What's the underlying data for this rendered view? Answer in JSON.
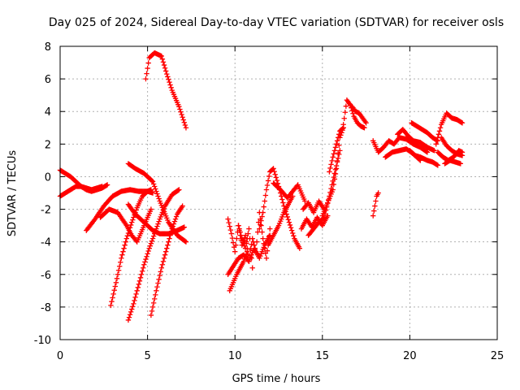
{
  "chart_data": {
    "type": "scatter",
    "title": "Day 025 of 2024, Sidereal Day-to-day VTEC variation (SDTVAR) for receiver osls",
    "xlabel": "GPS time / hours",
    "ylabel": "SDTVAR / TECUs",
    "xlim": [
      0,
      25
    ],
    "ylim": [
      -10,
      8
    ],
    "xticks": [
      0,
      5,
      10,
      15,
      20,
      25
    ],
    "yticks": [
      -10,
      -8,
      -6,
      -4,
      -2,
      0,
      2,
      4,
      6,
      8
    ],
    "xtick_labels": [
      "0",
      "5",
      "10",
      "15",
      "20",
      "25"
    ],
    "ytick_labels": [
      "-10",
      "-8",
      "-6",
      "-4",
      "-2",
      "0",
      "2",
      "4",
      "6",
      "8"
    ],
    "grid": true,
    "marker": "+",
    "marker_color": "#ff0000",
    "series": [
      {
        "x": [
          0.0,
          0.3,
          0.6,
          0.9,
          1.2,
          1.5,
          1.8,
          2.1,
          2.4,
          2.7
        ],
        "y": [
          0.4,
          0.2,
          0.0,
          -0.3,
          -0.6,
          -0.8,
          -0.9,
          -0.8,
          -0.7,
          -0.5
        ]
      },
      {
        "x": [
          0.0,
          0.3,
          0.6,
          0.9,
          1.2,
          1.5,
          1.8,
          2.1,
          2.4
        ],
        "y": [
          -1.2,
          -1.0,
          -0.8,
          -0.6,
          -0.6,
          -0.7,
          -0.8,
          -0.7,
          -0.6
        ]
      },
      {
        "x": [
          1.5,
          2.0,
          2.5,
          3.0,
          3.5,
          4.0,
          4.5,
          5.0,
          5.3
        ],
        "y": [
          -3.3,
          -2.6,
          -1.8,
          -1.2,
          -0.9,
          -0.8,
          -0.9,
          -0.9,
          -1.0
        ]
      },
      {
        "x": [
          2.3,
          2.8,
          3.3,
          3.8,
          4.1,
          4.4,
          4.8,
          5.2
        ],
        "y": [
          -2.5,
          -2.0,
          -2.2,
          -3.0,
          -3.6,
          -4.0,
          -3.0,
          -2.0
        ]
      },
      {
        "x": [
          3.9,
          4.3,
          4.8,
          5.3,
          5.7,
          6.2,
          6.7,
          7.1
        ],
        "y": [
          -1.7,
          -2.3,
          -2.8,
          -3.3,
          -3.5,
          -3.5,
          -3.3,
          -3.1
        ]
      },
      {
        "x": [
          3.9,
          4.3,
          4.8,
          5.3,
          5.7,
          6.2,
          6.7,
          7.2
        ],
        "y": [
          0.8,
          0.5,
          0.2,
          -0.3,
          -1.5,
          -2.8,
          -3.6,
          -4.0
        ]
      },
      {
        "x": [
          2.9,
          3.2,
          3.5,
          3.8,
          4.1,
          4.4,
          4.7,
          5.0,
          5.2
        ],
        "y": [
          -7.9,
          -6.5,
          -5.0,
          -3.8,
          -2.8,
          -1.9,
          -1.2,
          -0.9,
          -0.8
        ]
      },
      {
        "x": [
          3.9,
          4.2,
          4.5,
          4.8,
          5.1,
          5.4,
          5.7,
          6.0,
          6.4,
          6.8
        ],
        "y": [
          -8.8,
          -7.8,
          -6.6,
          -5.4,
          -4.4,
          -3.5,
          -2.6,
          -1.8,
          -1.1,
          -0.8
        ]
      },
      {
        "x": [
          5.2,
          5.5,
          5.8,
          6.1,
          6.4,
          6.7,
          7.0
        ],
        "y": [
          -8.5,
          -7.0,
          -5.6,
          -4.4,
          -3.2,
          -2.3,
          -1.8
        ]
      },
      {
        "x": [
          4.9,
          5.1,
          5.4,
          5.8,
          6.1,
          6.4,
          6.8,
          7.2
        ],
        "y": [
          6.0,
          7.3,
          7.6,
          7.4,
          6.3,
          5.3,
          4.3,
          3.0
        ]
      },
      {
        "x": [
          9.6,
          9.8,
          10.0,
          10.2,
          10.4,
          10.6,
          10.8,
          11.0,
          11.2,
          11.4,
          11.6,
          11.8,
          12.0
        ],
        "y": [
          -2.6,
          -3.5,
          -4.6,
          -3.0,
          -4.2,
          -3.6,
          -5.2,
          -3.8,
          -4.6,
          -2.2,
          -3.8,
          -5.0,
          -3.2
        ]
      },
      {
        "x": [
          9.6,
          9.9,
          10.2,
          10.5,
          10.8,
          11.1,
          11.4,
          11.7,
          12.0
        ],
        "y": [
          -6.0,
          -5.5,
          -5.0,
          -4.8,
          -5.2,
          -4.4,
          -5.0,
          -4.2,
          -3.6
        ]
      },
      {
        "x": [
          9.7,
          9.9,
          10.1,
          10.3,
          10.5,
          10.7
        ],
        "y": [
          -7.0,
          -6.5,
          -6.0,
          -5.6,
          -5.2,
          -4.6
        ]
      },
      {
        "x": [
          10.2,
          10.4,
          10.6,
          10.8,
          11.0
        ],
        "y": [
          -3.0,
          -3.8,
          -4.4,
          -3.2,
          -5.6
        ]
      },
      {
        "x": [
          11.4,
          11.6,
          11.8,
          12.0,
          12.2,
          12.5,
          12.8,
          13.1,
          13.4,
          13.7
        ],
        "y": [
          -3.2,
          -2.2,
          -0.8,
          0.3,
          0.5,
          -0.6,
          -1.8,
          -2.8,
          -3.8,
          -4.4
        ]
      },
      {
        "x": [
          11.9,
          12.2,
          12.5,
          12.8,
          13.1,
          13.3
        ],
        "y": [
          -4.2,
          -3.6,
          -3.0,
          -2.2,
          -1.6,
          -1.2
        ]
      },
      {
        "x": [
          12.2,
          12.6,
          13.0,
          13.3,
          13.6,
          14.0
        ],
        "y": [
          -0.4,
          -0.8,
          -1.3,
          -0.9,
          -0.5,
          -1.5
        ]
      },
      {
        "x": [
          13.8,
          14.1,
          14.4,
          14.7,
          15.0,
          15.3
        ],
        "y": [
          -3.2,
          -2.6,
          -3.1,
          -2.5,
          -3.0,
          -2.4
        ]
      },
      {
        "x": [
          13.9,
          14.2,
          14.5,
          14.8,
          15.1
        ],
        "y": [
          -2.0,
          -1.6,
          -2.2,
          -1.5,
          -2.0
        ]
      },
      {
        "x": [
          14.2,
          14.5,
          14.8,
          15.1,
          15.4,
          15.7,
          16.0
        ],
        "y": [
          -3.6,
          -3.2,
          -2.8,
          -2.5,
          -1.2,
          0.2,
          1.6
        ]
      },
      {
        "x": [
          15.0,
          15.3,
          15.6,
          15.8,
          16.0,
          16.2
        ],
        "y": [
          -2.4,
          -1.6,
          -0.8,
          0.5,
          2.4,
          3.0
        ]
      },
      {
        "x": [
          15.4,
          15.6,
          15.8,
          16.0,
          16.2
        ],
        "y": [
          0.3,
          1.2,
          2.0,
          2.8,
          3.0
        ]
      },
      {
        "x": [
          16.2,
          16.4,
          16.6,
          16.8,
          17.0,
          17.2,
          17.4
        ],
        "y": [
          3.2,
          4.7,
          4.4,
          3.7,
          3.3,
          3.1,
          3.0
        ]
      },
      {
        "x": [
          16.7,
          16.9,
          17.1,
          17.3,
          17.5
        ],
        "y": [
          4.3,
          4.0,
          3.9,
          3.6,
          3.3
        ]
      },
      {
        "x": [
          17.9,
          18.0,
          18.1,
          18.2
        ],
        "y": [
          -2.4,
          -1.8,
          -1.2,
          -1.0
        ]
      },
      {
        "x": [
          17.9,
          18.2,
          18.5,
          18.8,
          19.1,
          19.4,
          19.8,
          20.2,
          20.6,
          21.0
        ],
        "y": [
          2.2,
          1.5,
          1.8,
          2.2,
          2.0,
          2.4,
          2.3,
          2.0,
          1.8,
          1.5
        ]
      },
      {
        "x": [
          18.6,
          19.0,
          19.4,
          19.8,
          20.2,
          20.6
        ],
        "y": [
          1.2,
          1.5,
          1.6,
          1.7,
          1.4,
          1.0
        ]
      },
      {
        "x": [
          19.3,
          19.6,
          19.9,
          20.2,
          20.6,
          21.0,
          21.4
        ],
        "y": [
          2.6,
          2.9,
          2.5,
          2.2,
          2.1,
          1.8,
          1.6
        ]
      },
      {
        "x": [
          20.0,
          20.3,
          20.6,
          21.0,
          21.3,
          21.6
        ],
        "y": [
          1.6,
          1.3,
          1.2,
          1.0,
          0.9,
          0.7
        ]
      },
      {
        "x": [
          20.1,
          20.4,
          20.7,
          21.0,
          21.3,
          21.6
        ],
        "y": [
          3.3,
          3.1,
          2.9,
          2.7,
          2.4,
          2.2
        ]
      },
      {
        "x": [
          21.5,
          21.8,
          22.1,
          22.4,
          22.7,
          23.0
        ],
        "y": [
          2.0,
          3.2,
          3.9,
          3.6,
          3.5,
          3.3
        ]
      },
      {
        "x": [
          21.6,
          21.9,
          22.2,
          22.5,
          22.8,
          23.0
        ],
        "y": [
          1.5,
          1.2,
          1.0,
          1.2,
          1.6,
          1.5
        ]
      },
      {
        "x": [
          21.8,
          22.1,
          22.4,
          22.7,
          23.0
        ],
        "y": [
          2.4,
          1.9,
          1.6,
          1.4,
          1.3
        ]
      },
      {
        "x": [
          22.0,
          22.3,
          22.6,
          22.9
        ],
        "y": [
          0.8,
          1.0,
          0.9,
          0.8
        ]
      }
    ]
  }
}
